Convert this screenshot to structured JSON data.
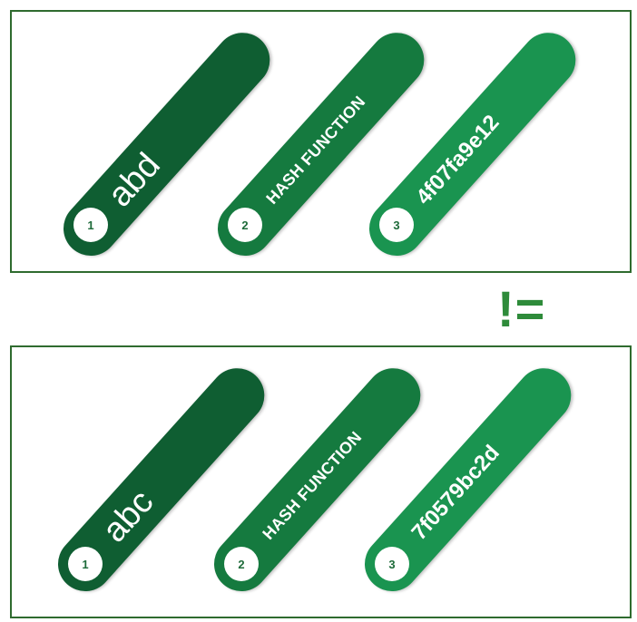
{
  "colors": {
    "step1": "#0f5e32",
    "step2": "#157a3f",
    "step3": "#1a9450",
    "border": "#2f6b2f",
    "operator": "#2e8b3a"
  },
  "top": {
    "step1": {
      "number": "1",
      "text": "abd"
    },
    "step2": {
      "number": "2",
      "text": "HASH FUNCTION"
    },
    "step3": {
      "number": "3",
      "text": "4f07fa9e12"
    }
  },
  "operator": "!=",
  "bottom": {
    "step1": {
      "number": "1",
      "text": "abc"
    },
    "step2": {
      "number": "2",
      "text": "HASH FUNCTION"
    },
    "step3": {
      "number": "3",
      "text": "7f0579bc2d"
    }
  }
}
